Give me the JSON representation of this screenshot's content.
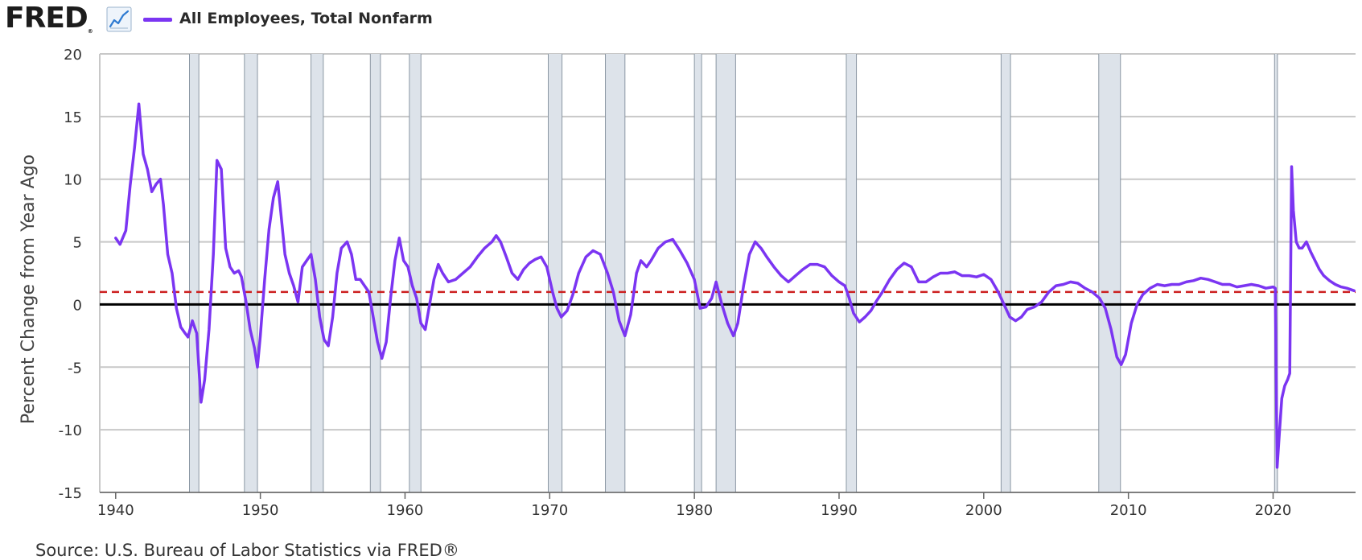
{
  "header": {
    "logo_text": "FRED",
    "logo_mark": "®",
    "icon": "line-graph-icon"
  },
  "source": "Source: U.S. Bureau of Labor Statistics via FRED®",
  "colors": {
    "series": "#7b35f2",
    "recession": "#dde3ea",
    "recession_edge": "#8b97a3",
    "mean_line": "#cc1f1f",
    "zero_line": "#000000",
    "grid": "#c8c8c8"
  },
  "chart_data": {
    "type": "line",
    "title": "",
    "xlabel": "",
    "ylabel": "Percent Change from Year Ago",
    "xlim": [
      1938.9,
      2025.7
    ],
    "ylim": [
      -15,
      20
    ],
    "yticks": [
      -15,
      -10,
      -5,
      0,
      5,
      10,
      15,
      20
    ],
    "xticks": [
      1940,
      1950,
      1960,
      1970,
      1980,
      1990,
      2000,
      2010,
      2020
    ],
    "grid": true,
    "legend_placement": "top-left",
    "reference_lines": [
      {
        "value": 0,
        "style": "solid"
      },
      {
        "value": 1.0,
        "style": "dashed"
      }
    ],
    "recessions": [
      [
        1945.1,
        1945.75
      ],
      [
        1948.9,
        1949.8
      ],
      [
        1953.5,
        1954.35
      ],
      [
        1957.6,
        1958.3
      ],
      [
        1960.3,
        1961.1
      ],
      [
        1969.9,
        1970.85
      ],
      [
        1973.85,
        1975.2
      ],
      [
        1980.0,
        1980.5
      ],
      [
        1981.5,
        1982.85
      ],
      [
        1990.5,
        1991.2
      ],
      [
        2001.2,
        2001.85
      ],
      [
        2007.95,
        2009.45
      ],
      [
        2020.1,
        2020.3
      ]
    ],
    "series": [
      {
        "name": "All Employees, Total Nonfarm",
        "points": [
          [
            1940.0,
            5.3
          ],
          [
            1940.3,
            4.8
          ],
          [
            1940.7,
            5.9
          ],
          [
            1941.0,
            9.5
          ],
          [
            1941.3,
            12.5
          ],
          [
            1941.6,
            16.0
          ],
          [
            1941.9,
            12.0
          ],
          [
            1942.2,
            10.8
          ],
          [
            1942.5,
            9.0
          ],
          [
            1942.8,
            9.6
          ],
          [
            1943.1,
            10.0
          ],
          [
            1943.3,
            8.0
          ],
          [
            1943.6,
            4.0
          ],
          [
            1943.9,
            2.5
          ],
          [
            1944.2,
            -0.3
          ],
          [
            1944.5,
            -1.8
          ],
          [
            1944.8,
            -2.3
          ],
          [
            1945.0,
            -2.6
          ],
          [
            1945.3,
            -1.3
          ],
          [
            1945.6,
            -2.3
          ],
          [
            1945.9,
            -7.8
          ],
          [
            1946.15,
            -6.0
          ],
          [
            1946.45,
            -2.0
          ],
          [
            1946.75,
            4.0
          ],
          [
            1947.0,
            11.5
          ],
          [
            1947.3,
            10.8
          ],
          [
            1947.6,
            4.5
          ],
          [
            1947.9,
            3.0
          ],
          [
            1948.2,
            2.5
          ],
          [
            1948.5,
            2.7
          ],
          [
            1948.7,
            2.2
          ],
          [
            1949.0,
            0.3
          ],
          [
            1949.3,
            -2.0
          ],
          [
            1949.6,
            -3.5
          ],
          [
            1949.8,
            -5.0
          ],
          [
            1950.0,
            -2.5
          ],
          [
            1950.3,
            2.0
          ],
          [
            1950.6,
            6.0
          ],
          [
            1950.9,
            8.5
          ],
          [
            1951.2,
            9.8
          ],
          [
            1951.4,
            7.5
          ],
          [
            1951.7,
            4.0
          ],
          [
            1952.0,
            2.5
          ],
          [
            1952.3,
            1.5
          ],
          [
            1952.6,
            0.2
          ],
          [
            1952.9,
            3.0
          ],
          [
            1953.2,
            3.5
          ],
          [
            1953.5,
            4.0
          ],
          [
            1953.8,
            2.0
          ],
          [
            1954.1,
            -1.0
          ],
          [
            1954.4,
            -2.8
          ],
          [
            1954.7,
            -3.3
          ],
          [
            1955.0,
            -1.0
          ],
          [
            1955.3,
            2.5
          ],
          [
            1955.6,
            4.5
          ],
          [
            1956.0,
            5.0
          ],
          [
            1956.3,
            4.0
          ],
          [
            1956.6,
            2.0
          ],
          [
            1956.9,
            2.0
          ],
          [
            1957.2,
            1.5
          ],
          [
            1957.5,
            1.0
          ],
          [
            1957.8,
            -1.0
          ],
          [
            1958.1,
            -3.0
          ],
          [
            1958.4,
            -4.3
          ],
          [
            1958.7,
            -3.0
          ],
          [
            1959.0,
            0.5
          ],
          [
            1959.3,
            3.5
          ],
          [
            1959.6,
            5.3
          ],
          [
            1959.9,
            3.5
          ],
          [
            1960.2,
            3.0
          ],
          [
            1960.5,
            1.5
          ],
          [
            1960.8,
            0.5
          ],
          [
            1961.1,
            -1.5
          ],
          [
            1961.4,
            -2.0
          ],
          [
            1961.7,
            0.0
          ],
          [
            1962.0,
            2.0
          ],
          [
            1962.3,
            3.2
          ],
          [
            1962.6,
            2.5
          ],
          [
            1963.0,
            1.8
          ],
          [
            1963.5,
            2.0
          ],
          [
            1964.0,
            2.5
          ],
          [
            1964.5,
            3.0
          ],
          [
            1965.0,
            3.8
          ],
          [
            1965.5,
            4.5
          ],
          [
            1966.0,
            5.0
          ],
          [
            1966.3,
            5.5
          ],
          [
            1966.6,
            5.0
          ],
          [
            1967.0,
            3.8
          ],
          [
            1967.4,
            2.5
          ],
          [
            1967.8,
            2.0
          ],
          [
            1968.2,
            2.8
          ],
          [
            1968.6,
            3.3
          ],
          [
            1969.0,
            3.6
          ],
          [
            1969.4,
            3.8
          ],
          [
            1969.8,
            3.0
          ],
          [
            1970.2,
            1.0
          ],
          [
            1970.5,
            -0.3
          ],
          [
            1970.8,
            -1.0
          ],
          [
            1971.2,
            -0.5
          ],
          [
            1971.6,
            0.8
          ],
          [
            1972.0,
            2.5
          ],
          [
            1972.5,
            3.8
          ],
          [
            1973.0,
            4.3
          ],
          [
            1973.5,
            4.0
          ],
          [
            1974.0,
            2.5
          ],
          [
            1974.4,
            1.0
          ],
          [
            1974.8,
            -1.3
          ],
          [
            1975.2,
            -2.5
          ],
          [
            1975.6,
            -0.8
          ],
          [
            1976.0,
            2.5
          ],
          [
            1976.3,
            3.5
          ],
          [
            1976.7,
            3.0
          ],
          [
            1977.0,
            3.5
          ],
          [
            1977.5,
            4.5
          ],
          [
            1978.0,
            5.0
          ],
          [
            1978.5,
            5.2
          ],
          [
            1979.0,
            4.3
          ],
          [
            1979.5,
            3.3
          ],
          [
            1980.0,
            2.0
          ],
          [
            1980.4,
            -0.3
          ],
          [
            1980.8,
            -0.2
          ],
          [
            1981.2,
            0.5
          ],
          [
            1981.5,
            1.8
          ],
          [
            1981.9,
            0.0
          ],
          [
            1982.3,
            -1.5
          ],
          [
            1982.7,
            -2.5
          ],
          [
            1983.0,
            -1.5
          ],
          [
            1983.4,
            1.5
          ],
          [
            1983.8,
            4.0
          ],
          [
            1984.2,
            5.0
          ],
          [
            1984.6,
            4.5
          ],
          [
            1985.0,
            3.8
          ],
          [
            1985.5,
            3.0
          ],
          [
            1986.0,
            2.3
          ],
          [
            1986.5,
            1.8
          ],
          [
            1987.0,
            2.3
          ],
          [
            1987.5,
            2.8
          ],
          [
            1988.0,
            3.2
          ],
          [
            1988.5,
            3.2
          ],
          [
            1989.0,
            3.0
          ],
          [
            1989.5,
            2.3
          ],
          [
            1990.0,
            1.8
          ],
          [
            1990.4,
            1.5
          ],
          [
            1990.7,
            0.5
          ],
          [
            1991.0,
            -0.7
          ],
          [
            1991.4,
            -1.4
          ],
          [
            1991.8,
            -1.0
          ],
          [
            1992.2,
            -0.5
          ],
          [
            1992.6,
            0.3
          ],
          [
            1993.0,
            1.0
          ],
          [
            1993.5,
            2.0
          ],
          [
            1994.0,
            2.8
          ],
          [
            1994.5,
            3.3
          ],
          [
            1995.0,
            3.0
          ],
          [
            1995.5,
            1.8
          ],
          [
            1996.0,
            1.8
          ],
          [
            1996.5,
            2.2
          ],
          [
            1997.0,
            2.5
          ],
          [
            1997.5,
            2.5
          ],
          [
            1998.0,
            2.6
          ],
          [
            1998.5,
            2.3
          ],
          [
            1999.0,
            2.3
          ],
          [
            1999.5,
            2.2
          ],
          [
            2000.0,
            2.4
          ],
          [
            2000.5,
            2.0
          ],
          [
            2001.0,
            1.0
          ],
          [
            2001.4,
            0.0
          ],
          [
            2001.8,
            -1.0
          ],
          [
            2002.2,
            -1.3
          ],
          [
            2002.6,
            -1.0
          ],
          [
            2003.0,
            -0.4
          ],
          [
            2003.5,
            -0.2
          ],
          [
            2004.0,
            0.2
          ],
          [
            2004.5,
            1.0
          ],
          [
            2005.0,
            1.5
          ],
          [
            2005.5,
            1.6
          ],
          [
            2006.0,
            1.8
          ],
          [
            2006.5,
            1.7
          ],
          [
            2007.0,
            1.3
          ],
          [
            2007.5,
            1.0
          ],
          [
            2008.0,
            0.5
          ],
          [
            2008.4,
            -0.3
          ],
          [
            2008.8,
            -2.0
          ],
          [
            2009.2,
            -4.2
          ],
          [
            2009.5,
            -4.8
          ],
          [
            2009.8,
            -4.0
          ],
          [
            2010.2,
            -1.5
          ],
          [
            2010.6,
            0.0
          ],
          [
            2011.0,
            0.8
          ],
          [
            2011.5,
            1.3
          ],
          [
            2012.0,
            1.6
          ],
          [
            2012.5,
            1.5
          ],
          [
            2013.0,
            1.6
          ],
          [
            2013.5,
            1.6
          ],
          [
            2014.0,
            1.8
          ],
          [
            2014.5,
            1.9
          ],
          [
            2015.0,
            2.1
          ],
          [
            2015.5,
            2.0
          ],
          [
            2016.0,
            1.8
          ],
          [
            2016.5,
            1.6
          ],
          [
            2017.0,
            1.6
          ],
          [
            2017.5,
            1.4
          ],
          [
            2018.0,
            1.5
          ],
          [
            2018.5,
            1.6
          ],
          [
            2019.0,
            1.5
          ],
          [
            2019.5,
            1.3
          ],
          [
            2020.0,
            1.4
          ],
          [
            2020.15,
            1.3
          ],
          [
            2020.28,
            -13.0
          ],
          [
            2020.45,
            -10.0
          ],
          [
            2020.6,
            -7.5
          ],
          [
            2020.8,
            -6.5
          ],
          [
            2021.0,
            -6.0
          ],
          [
            2021.15,
            -5.5
          ],
          [
            2021.28,
            11.0
          ],
          [
            2021.4,
            7.5
          ],
          [
            2021.6,
            5.0
          ],
          [
            2021.8,
            4.5
          ],
          [
            2022.0,
            4.5
          ],
          [
            2022.3,
            5.0
          ],
          [
            2022.6,
            4.2
          ],
          [
            2022.9,
            3.5
          ],
          [
            2023.2,
            2.8
          ],
          [
            2023.5,
            2.3
          ],
          [
            2023.9,
            1.9
          ],
          [
            2024.3,
            1.6
          ],
          [
            2024.7,
            1.4
          ],
          [
            2025.1,
            1.3
          ],
          [
            2025.6,
            1.1
          ]
        ]
      }
    ]
  }
}
